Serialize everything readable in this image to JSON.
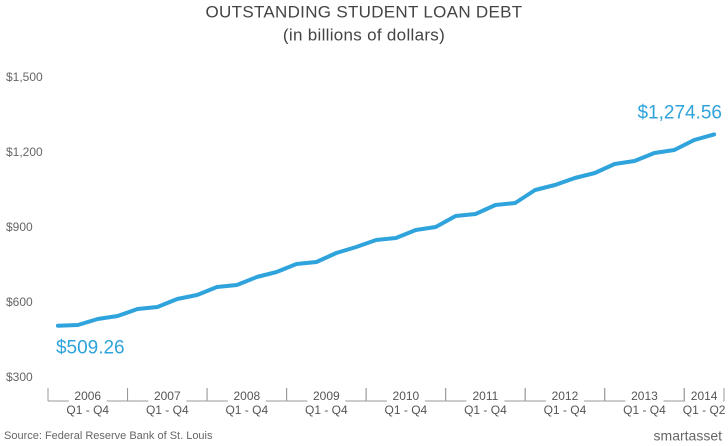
{
  "chart_data": {
    "type": "line",
    "title": "OUTSTANDING STUDENT LOAN DEBT",
    "subtitle": "(in billions of dollars)",
    "groups": [
      {
        "label": "2006",
        "sublabel": "Q1 - Q4"
      },
      {
        "label": "2007",
        "sublabel": "Q1 - Q4"
      },
      {
        "label": "2008",
        "sublabel": "Q1 - Q4"
      },
      {
        "label": "2009",
        "sublabel": "Q1 - Q4"
      },
      {
        "label": "2010",
        "sublabel": "Q1 - Q4"
      },
      {
        "label": "2011",
        "sublabel": "Q1 - Q4"
      },
      {
        "label": "2012",
        "sublabel": "Q1 - Q4"
      },
      {
        "label": "2013",
        "sublabel": "Q1 - Q4"
      },
      {
        "label": "2014",
        "sublabel": "Q1 - Q2"
      }
    ],
    "values": [
      509.26,
      512,
      536,
      548,
      576,
      584,
      616,
      632,
      664,
      672,
      704,
      724,
      756,
      764,
      800,
      824,
      852,
      860,
      892,
      904,
      948,
      956,
      992,
      1000,
      1052,
      1072,
      1100,
      1120,
      1156,
      1168,
      1200,
      1212,
      1252,
      1274.56
    ],
    "value_labels": [
      "$509.26",
      null,
      null,
      null,
      null,
      null,
      null,
      null,
      null,
      null,
      null,
      null,
      null,
      null,
      null,
      null,
      null,
      null,
      null,
      null,
      null,
      null,
      null,
      null,
      null,
      null,
      null,
      null,
      null,
      null,
      null,
      null,
      null,
      "$1,274.56"
    ],
    "color": "#2fa3dc",
    "ylim": [
      300,
      1500
    ],
    "yticks": [
      {
        "value": 300,
        "label": "$300"
      },
      {
        "value": 600,
        "label": "$600"
      },
      {
        "value": 900,
        "label": "$900"
      },
      {
        "value": 1200,
        "label": "$1,200"
      },
      {
        "value": 1500,
        "label": "$1,500"
      }
    ],
    "grid": false,
    "source": "Source: Federal Reserve Bank of St. Louis",
    "logo": "smartasset"
  }
}
